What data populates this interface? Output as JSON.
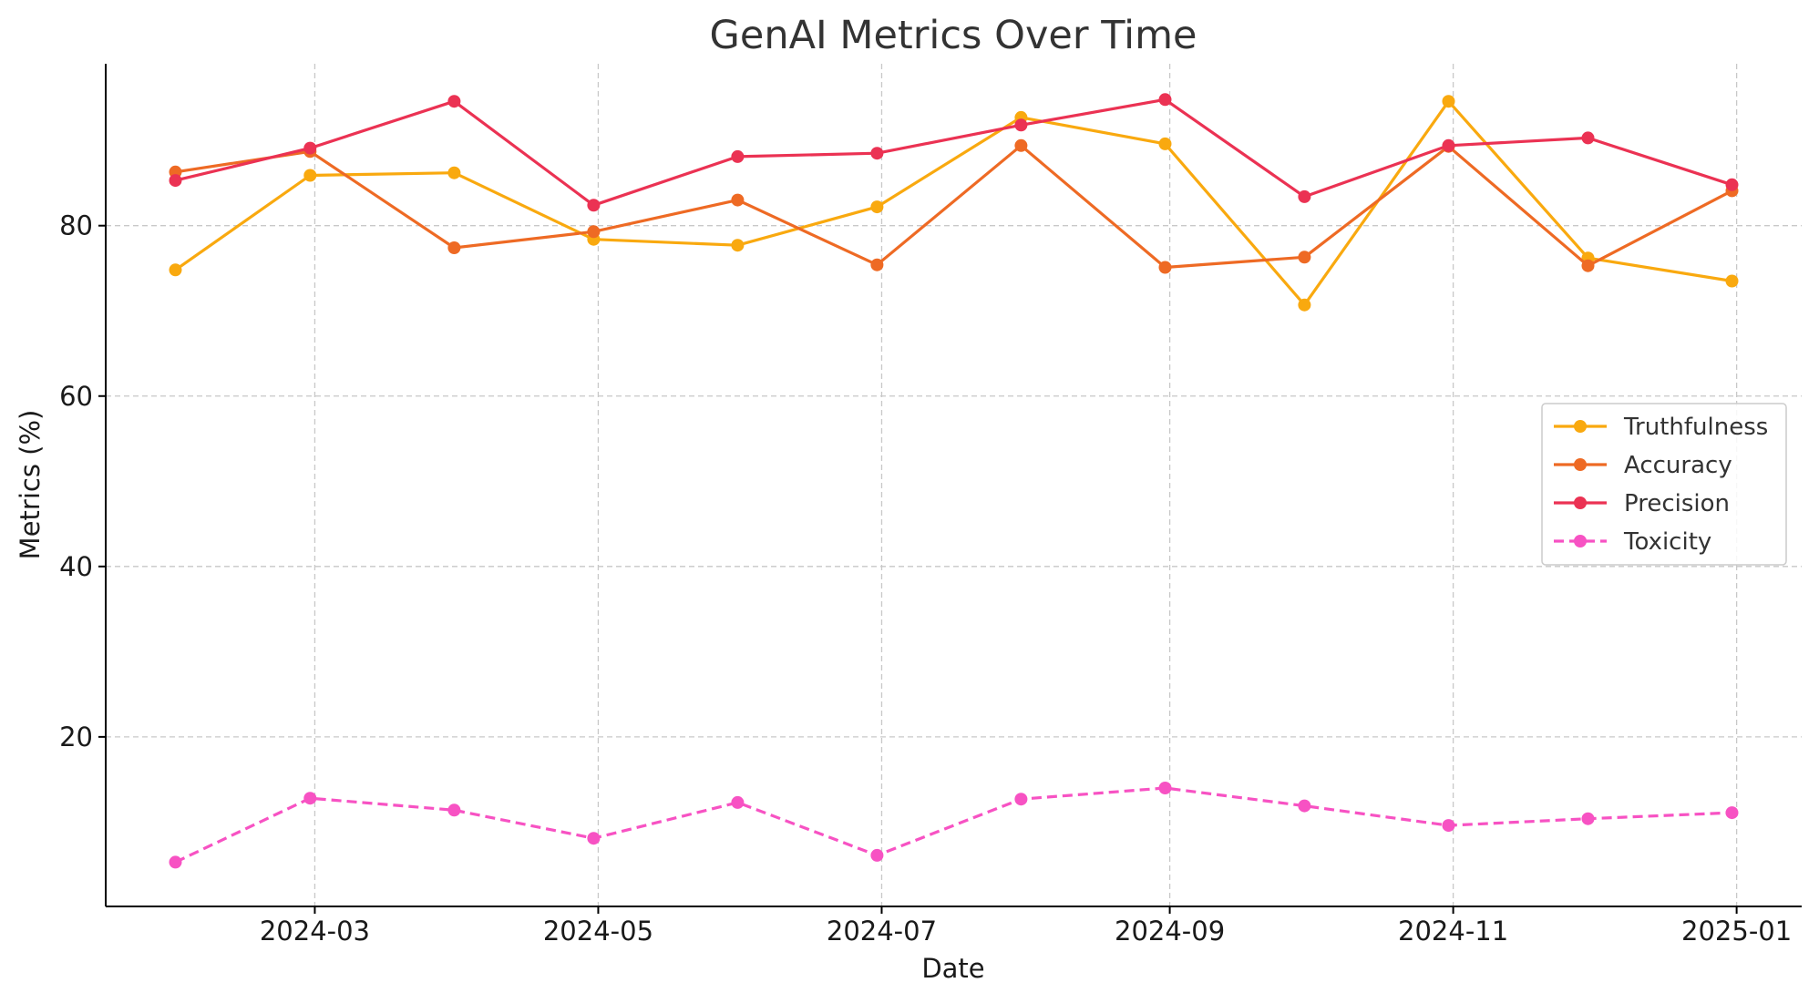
{
  "chart_data": {
    "type": "line",
    "title": "GenAI Metrics Over Time",
    "xlabel": "Date",
    "ylabel": "Metrics (%)",
    "x": [
      "2024-01-31",
      "2024-02-29",
      "2024-03-31",
      "2024-04-30",
      "2024-05-31",
      "2024-06-30",
      "2024-07-31",
      "2024-08-31",
      "2024-09-30",
      "2024-10-31",
      "2024-11-30",
      "2024-12-31"
    ],
    "x_ticks": [
      "2024-03",
      "2024-05",
      "2024-07",
      "2024-09",
      "2024-11",
      "2025-01"
    ],
    "x_tick_dates": [
      "2024-03-01",
      "2024-05-01",
      "2024-07-01",
      "2024-09-01",
      "2024-11-01",
      "2025-01-01"
    ],
    "xlim": [
      "2024-01-16",
      "2025-01-15"
    ],
    "ylim": [
      0.1,
      99
    ],
    "y_ticks": [
      20,
      40,
      60,
      80
    ],
    "grid": true,
    "legend_position": "center-right",
    "series": [
      {
        "name": "Truthfulness",
        "color": "#F9A90F",
        "dashed": false,
        "values": [
          74.8,
          85.9,
          86.2,
          78.4,
          77.7,
          82.2,
          92.7,
          89.6,
          70.7,
          94.6,
          76.2,
          73.5
        ]
      },
      {
        "name": "Accuracy",
        "color": "#EE6A24",
        "dashed": false,
        "values": [
          86.3,
          88.7,
          77.4,
          79.3,
          83.0,
          75.4,
          89.4,
          75.1,
          76.3,
          89.3,
          75.3,
          84.1
        ]
      },
      {
        "name": "Precision",
        "color": "#EB3253",
        "dashed": false,
        "values": [
          85.3,
          89.1,
          94.6,
          82.4,
          88.1,
          88.5,
          91.8,
          94.8,
          83.4,
          89.4,
          90.3,
          84.8
        ]
      },
      {
        "name": "Toxicity",
        "color": "#F752C3",
        "dashed": true,
        "values": [
          5.3,
          12.8,
          11.4,
          8.1,
          12.3,
          6.1,
          12.7,
          14.0,
          11.9,
          9.6,
          10.4,
          11.1
        ]
      }
    ]
  }
}
